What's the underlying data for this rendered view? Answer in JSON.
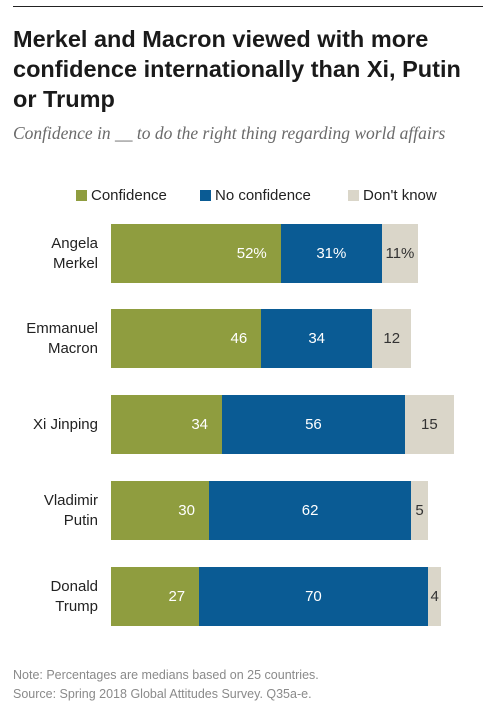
{
  "title": "Merkel and Macron viewed with more confidence internationally than Xi, Putin or Trump",
  "subtitle": "Confidence in __ to do the right thing regarding world affairs",
  "note": "Note: Percentages are medians based on 25 countries.",
  "source": "Source: Spring 2018 Global Attitudes Survey. Q35a-e.",
  "colors": {
    "confidence": "#8f9d3f",
    "no_confidence": "#0a5b94",
    "dont_know": "#dad6c9"
  },
  "chart_data": {
    "type": "bar",
    "orientation": "horizontal",
    "stacked": true,
    "xlim": [
      0,
      100
    ],
    "grid": false,
    "legend": "top",
    "categories": [
      [
        "Angela",
        "Merkel"
      ],
      [
        "Emmanuel",
        "Macron"
      ],
      [
        "Xi Jinping"
      ],
      [
        "Vladimir",
        "Putin"
      ],
      [
        "Donald",
        "Trump"
      ]
    ],
    "series": [
      {
        "name": "Confidence",
        "values": [
          52,
          46,
          34,
          30,
          27
        ],
        "labels": [
          "52%",
          "46",
          "34",
          "30",
          "27"
        ]
      },
      {
        "name": "No confidence",
        "values": [
          31,
          34,
          56,
          62,
          70
        ],
        "labels": [
          "31%",
          "34",
          "56",
          "62",
          "70"
        ]
      },
      {
        "name": "Don't know",
        "values": [
          11,
          12,
          15,
          5,
          4
        ],
        "labels": [
          "11%",
          "12",
          "15",
          "5",
          "4"
        ]
      }
    ]
  }
}
